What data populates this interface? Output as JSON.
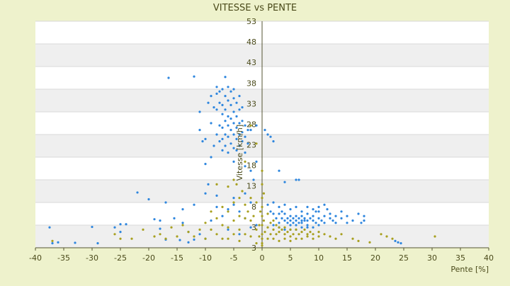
{
  "chart_data": {
    "type": "scatter",
    "title": "VITESSE vs PENTE",
    "xlabel": "Pente [%]",
    "ylabel": "Vitesse [km/h]",
    "xlim": [
      -40,
      40
    ],
    "ylim": [
      3,
      53
    ],
    "x_ticks": [
      "-40",
      "-35",
      "-30",
      "-25",
      "-20",
      "-15",
      "-10",
      "-5",
      "0",
      "5",
      "10",
      "15",
      "20",
      "25",
      "30",
      "35",
      "40"
    ],
    "y_ticks": [
      "3",
      "3",
      "8",
      "13",
      "18",
      "23",
      "28",
      "33",
      "38",
      "43",
      "48",
      "53"
    ],
    "grid": true,
    "legend": "none",
    "colors": {
      "background": "#eef2cc",
      "plot_band_light": "#ffffff",
      "plot_band_dark": "#efefef",
      "series_blue": "#2e86de",
      "series_olive": "#a8a020",
      "axis": "#555533"
    },
    "series": [
      {
        "color": "#2e86de",
        "points": [
          [
            -37.5,
            7.5
          ],
          [
            -37,
            4
          ],
          [
            -36,
            4.2
          ],
          [
            -33,
            4.1
          ],
          [
            -30,
            7.6
          ],
          [
            -29,
            4
          ],
          [
            -26,
            7.5
          ],
          [
            -25,
            8.2
          ],
          [
            -25,
            6.5
          ],
          [
            -24,
            8.2
          ],
          [
            -22,
            15.2
          ],
          [
            -20,
            13.7
          ],
          [
            -19,
            9.3
          ],
          [
            -18,
            9
          ],
          [
            -18,
            7.2
          ],
          [
            -17,
            13
          ],
          [
            -17,
            4.8
          ],
          [
            -16.5,
            40.5
          ],
          [
            -15.5,
            9.5
          ],
          [
            -14.5,
            4.7
          ],
          [
            -14,
            11.5
          ],
          [
            -14,
            8.5
          ],
          [
            -13,
            6.5
          ],
          [
            -13,
            4.2
          ],
          [
            -12,
            40.8
          ],
          [
            -12,
            12.5
          ],
          [
            -12,
            4.8
          ],
          [
            -11,
            33
          ],
          [
            -11,
            29
          ],
          [
            -11,
            6
          ],
          [
            -10.5,
            26.5
          ],
          [
            -10,
            27
          ],
          [
            -10,
            21.5
          ],
          [
            -10,
            15
          ],
          [
            -9.5,
            35
          ],
          [
            -9.5,
            17
          ],
          [
            -9,
            36.5
          ],
          [
            -9,
            30.5
          ],
          [
            -9,
            23
          ],
          [
            -8.5,
            34
          ],
          [
            -8.5,
            25.5
          ],
          [
            -8,
            38.5
          ],
          [
            -8,
            37
          ],
          [
            -8,
            33.5
          ],
          [
            -8,
            28
          ],
          [
            -8,
            14.5
          ],
          [
            -7.5,
            37.5
          ],
          [
            -7.5,
            35
          ],
          [
            -7.5,
            30
          ],
          [
            -7.5,
            26.5
          ],
          [
            -7,
            38
          ],
          [
            -7,
            34.5
          ],
          [
            -7,
            32.5
          ],
          [
            -7,
            29.5
          ],
          [
            -7,
            27
          ],
          [
            -7,
            24.5
          ],
          [
            -6.5,
            40.7
          ],
          [
            -6.5,
            36.5
          ],
          [
            -6.5,
            33.5
          ],
          [
            -6.5,
            31
          ],
          [
            -6.5,
            28
          ],
          [
            -6.5,
            25.5
          ],
          [
            -6,
            38.5
          ],
          [
            -6,
            35.5
          ],
          [
            -6,
            32
          ],
          [
            -6,
            30
          ],
          [
            -6,
            27.5
          ],
          [
            -6,
            24
          ],
          [
            -5.5,
            37.5
          ],
          [
            -5.5,
            34.5
          ],
          [
            -5.5,
            31.5
          ],
          [
            -5.5,
            29
          ],
          [
            -5.5,
            26
          ],
          [
            -5,
            38
          ],
          [
            -5,
            36
          ],
          [
            -5,
            33
          ],
          [
            -5,
            30.5
          ],
          [
            -5,
            28
          ],
          [
            -5,
            25
          ],
          [
            -5,
            22
          ],
          [
            -4.5,
            35
          ],
          [
            -4.5,
            32
          ],
          [
            -4.5,
            29.5
          ],
          [
            -4.5,
            27
          ],
          [
            -4.5,
            24.5
          ],
          [
            -4,
            36.5
          ],
          [
            -4,
            33.5
          ],
          [
            -4,
            30.5
          ],
          [
            -4,
            28
          ],
          [
            -4,
            25.5
          ],
          [
            -3.5,
            34
          ],
          [
            -3.5,
            31
          ],
          [
            -3.5,
            28.5
          ],
          [
            -3.5,
            26.5
          ],
          [
            -3,
            30
          ],
          [
            -3,
            27.5
          ],
          [
            -3,
            24
          ],
          [
            -3,
            21
          ],
          [
            -2.5,
            29
          ],
          [
            -2.5,
            26
          ],
          [
            -2,
            29
          ],
          [
            -2,
            20
          ],
          [
            -1.5,
            18
          ],
          [
            -1,
            30
          ],
          [
            -1,
            22
          ],
          [
            -8,
            12
          ],
          [
            -7,
            10
          ],
          [
            -6,
            11.5
          ],
          [
            -5,
            12.5
          ],
          [
            -4,
            11
          ],
          [
            -3,
            9.5
          ],
          [
            -2,
            13
          ],
          [
            -1,
            8
          ],
          [
            -6,
            7
          ],
          [
            -4,
            6
          ],
          [
            -2,
            7.5
          ],
          [
            -9,
            9
          ],
          [
            -10,
            5
          ],
          [
            -5,
            14
          ],
          [
            -3,
            15
          ],
          [
            0.5,
            29
          ],
          [
            1,
            28
          ],
          [
            1.5,
            27.5
          ],
          [
            2,
            26.5
          ],
          [
            3,
            20
          ],
          [
            4,
            17.5
          ],
          [
            6,
            18
          ],
          [
            6.5,
            18
          ],
          [
            1,
            12.5
          ],
          [
            1.5,
            11
          ],
          [
            2,
            10.5
          ],
          [
            2.5,
            9.5
          ],
          [
            3,
            10.5
          ],
          [
            3,
            8.5
          ],
          [
            3.5,
            9.5
          ],
          [
            3.5,
            11
          ],
          [
            4,
            9
          ],
          [
            4,
            10.5
          ],
          [
            4.5,
            8.5
          ],
          [
            4.5,
            9.5
          ],
          [
            5,
            9
          ],
          [
            5,
            10
          ],
          [
            5,
            8
          ],
          [
            5.5,
            9.5
          ],
          [
            5.5,
            8.5
          ],
          [
            6,
            9
          ],
          [
            6,
            10
          ],
          [
            6,
            8
          ],
          [
            6.5,
            9.5
          ],
          [
            6.5,
            8.5
          ],
          [
            7,
            9
          ],
          [
            7,
            10
          ],
          [
            7,
            8.5
          ],
          [
            7.5,
            9
          ],
          [
            7.5,
            9.5
          ],
          [
            8,
            9
          ],
          [
            8,
            10.5
          ],
          [
            8,
            8
          ],
          [
            8.5,
            9.5
          ],
          [
            9,
            9
          ],
          [
            9,
            10
          ],
          [
            9.5,
            11
          ],
          [
            9.5,
            8.5
          ],
          [
            10,
            9.5
          ],
          [
            10,
            11
          ],
          [
            10.5,
            9
          ],
          [
            11,
            10
          ],
          [
            11,
            8.5
          ],
          [
            11.5,
            11.5
          ],
          [
            12,
            9.5
          ],
          [
            12,
            10.5
          ],
          [
            12.5,
            9
          ],
          [
            13,
            10
          ],
          [
            13,
            8.5
          ],
          [
            14,
            9.5
          ],
          [
            14,
            11
          ],
          [
            15,
            8.5
          ],
          [
            15,
            10
          ],
          [
            16,
            9
          ],
          [
            17,
            10.5
          ],
          [
            17.5,
            8.5
          ],
          [
            18,
            10
          ],
          [
            18,
            9
          ],
          [
            2,
            13
          ],
          [
            3,
            12
          ],
          [
            4,
            12.5
          ],
          [
            5,
            11.5
          ],
          [
            6,
            12
          ],
          [
            7,
            11
          ],
          [
            8,
            12
          ],
          [
            9,
            11.5
          ],
          [
            10,
            12
          ],
          [
            11,
            12.5
          ],
          [
            3,
            7.5
          ],
          [
            5,
            7
          ],
          [
            7,
            7.5
          ],
          [
            9,
            7.5
          ],
          [
            2,
            8
          ],
          [
            4,
            7
          ],
          [
            6,
            7
          ],
          [
            8,
            7.5
          ],
          [
            10,
            8
          ],
          [
            24,
            4.2
          ],
          [
            24.5,
            4
          ],
          [
            23.5,
            4.5
          ]
        ]
      },
      {
        "color": "#a8a020",
        "points": [
          [
            -37,
            4.5
          ],
          [
            -26,
            6
          ],
          [
            -25,
            5
          ],
          [
            -23,
            5
          ],
          [
            -21,
            7
          ],
          [
            -19,
            5.5
          ],
          [
            -18,
            6
          ],
          [
            -17,
            5
          ],
          [
            -16,
            7.5
          ],
          [
            -15,
            5.5
          ],
          [
            -14,
            8
          ],
          [
            -13,
            6.5
          ],
          [
            -12,
            5.5
          ],
          [
            -11,
            7
          ],
          [
            -10,
            8.5
          ],
          [
            -10,
            5
          ],
          [
            -9,
            11
          ],
          [
            -9,
            7
          ],
          [
            -8,
            9.5
          ],
          [
            -8,
            6
          ],
          [
            -8,
            17
          ],
          [
            -7,
            12
          ],
          [
            -7,
            8
          ],
          [
            -7,
            5
          ],
          [
            -6,
            16.5
          ],
          [
            -6,
            11
          ],
          [
            -6,
            7.5
          ],
          [
            -6,
            5
          ],
          [
            -5,
            18
          ],
          [
            -5,
            13
          ],
          [
            -5,
            9
          ],
          [
            -5,
            6
          ],
          [
            -4.5,
            17
          ],
          [
            -4,
            14
          ],
          [
            -4,
            10
          ],
          [
            -4,
            7
          ],
          [
            -4,
            4.5
          ],
          [
            -3.5,
            15.5
          ],
          [
            -3,
            12.5
          ],
          [
            -3,
            9.5
          ],
          [
            -3,
            6
          ],
          [
            -2.5,
            11
          ],
          [
            -2,
            14
          ],
          [
            -2,
            9
          ],
          [
            -2,
            5.5
          ],
          [
            -1.5,
            10
          ],
          [
            -1,
            13
          ],
          [
            -1,
            7
          ],
          [
            -1,
            4
          ],
          [
            -0.5,
            8
          ],
          [
            -0.5,
            5.5
          ],
          [
            -0.3,
            11
          ],
          [
            0,
            20
          ],
          [
            0,
            17
          ],
          [
            0,
            14
          ],
          [
            0,
            12
          ],
          [
            0,
            10
          ],
          [
            0,
            8
          ],
          [
            0,
            6
          ],
          [
            0,
            5
          ],
          [
            0,
            4
          ],
          [
            0,
            3.5
          ],
          [
            0.3,
            15
          ],
          [
            0.3,
            9
          ],
          [
            0.5,
            6.5
          ],
          [
            1,
            10.5
          ],
          [
            1,
            7.5
          ],
          [
            1,
            5
          ],
          [
            1.5,
            8.5
          ],
          [
            1.5,
            6
          ],
          [
            2,
            9
          ],
          [
            2,
            7
          ],
          [
            2,
            5
          ],
          [
            2.5,
            8
          ],
          [
            2.5,
            6
          ],
          [
            3,
            7.5
          ],
          [
            3,
            6.5
          ],
          [
            3,
            4.5
          ],
          [
            3.5,
            7
          ],
          [
            4,
            7.5
          ],
          [
            4,
            6
          ],
          [
            4,
            5
          ],
          [
            4.5,
            6.5
          ],
          [
            5,
            7
          ],
          [
            5,
            5.5
          ],
          [
            5,
            4.5
          ],
          [
            5.5,
            6
          ],
          [
            6,
            7
          ],
          [
            6,
            5
          ],
          [
            6.5,
            6
          ],
          [
            7,
            6.5
          ],
          [
            7,
            5
          ],
          [
            7.5,
            7
          ],
          [
            8,
            6
          ],
          [
            8,
            5.5
          ],
          [
            8.5,
            6.5
          ],
          [
            9,
            6
          ],
          [
            9,
            5
          ],
          [
            10,
            6.5
          ],
          [
            10,
            5.5
          ],
          [
            11,
            6
          ],
          [
            12,
            5.5
          ],
          [
            13,
            5
          ],
          [
            14,
            6
          ],
          [
            16,
            5
          ],
          [
            17,
            4.5
          ],
          [
            19,
            4.2
          ],
          [
            21,
            6
          ],
          [
            22,
            5.5
          ],
          [
            23,
            5
          ],
          [
            30.5,
            5.5
          ],
          [
            -2,
            30
          ],
          [
            -1,
            26
          ],
          [
            -3,
            22
          ]
        ]
      }
    ]
  }
}
